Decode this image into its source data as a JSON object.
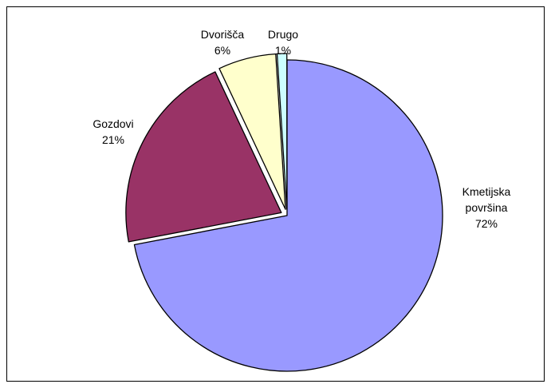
{
  "chart_data": {
    "type": "pie",
    "title": "",
    "slices": [
      {
        "label": "Kmetijska površina",
        "label_lines": [
          "Kmetijska",
          "površina"
        ],
        "percent_label": "72%",
        "value": 72,
        "color": "#9999ff",
        "exploded": false
      },
      {
        "label": "Gozdovi",
        "label_lines": [
          "Gozdovi"
        ],
        "percent_label": "21%",
        "value": 21,
        "color": "#993366",
        "exploded": true
      },
      {
        "label": "Dvorišča",
        "label_lines": [
          "Dvorišča"
        ],
        "percent_label": "6%",
        "value": 6,
        "color": "#ffffcc",
        "exploded": true
      },
      {
        "label": "Drugo",
        "label_lines": [
          "Drugo"
        ],
        "percent_label": "1%",
        "value": 1,
        "color": "#ccffff",
        "exploded": true
      }
    ],
    "start_angle": "12 o'clock",
    "direction": "clockwise",
    "legend": "none"
  }
}
